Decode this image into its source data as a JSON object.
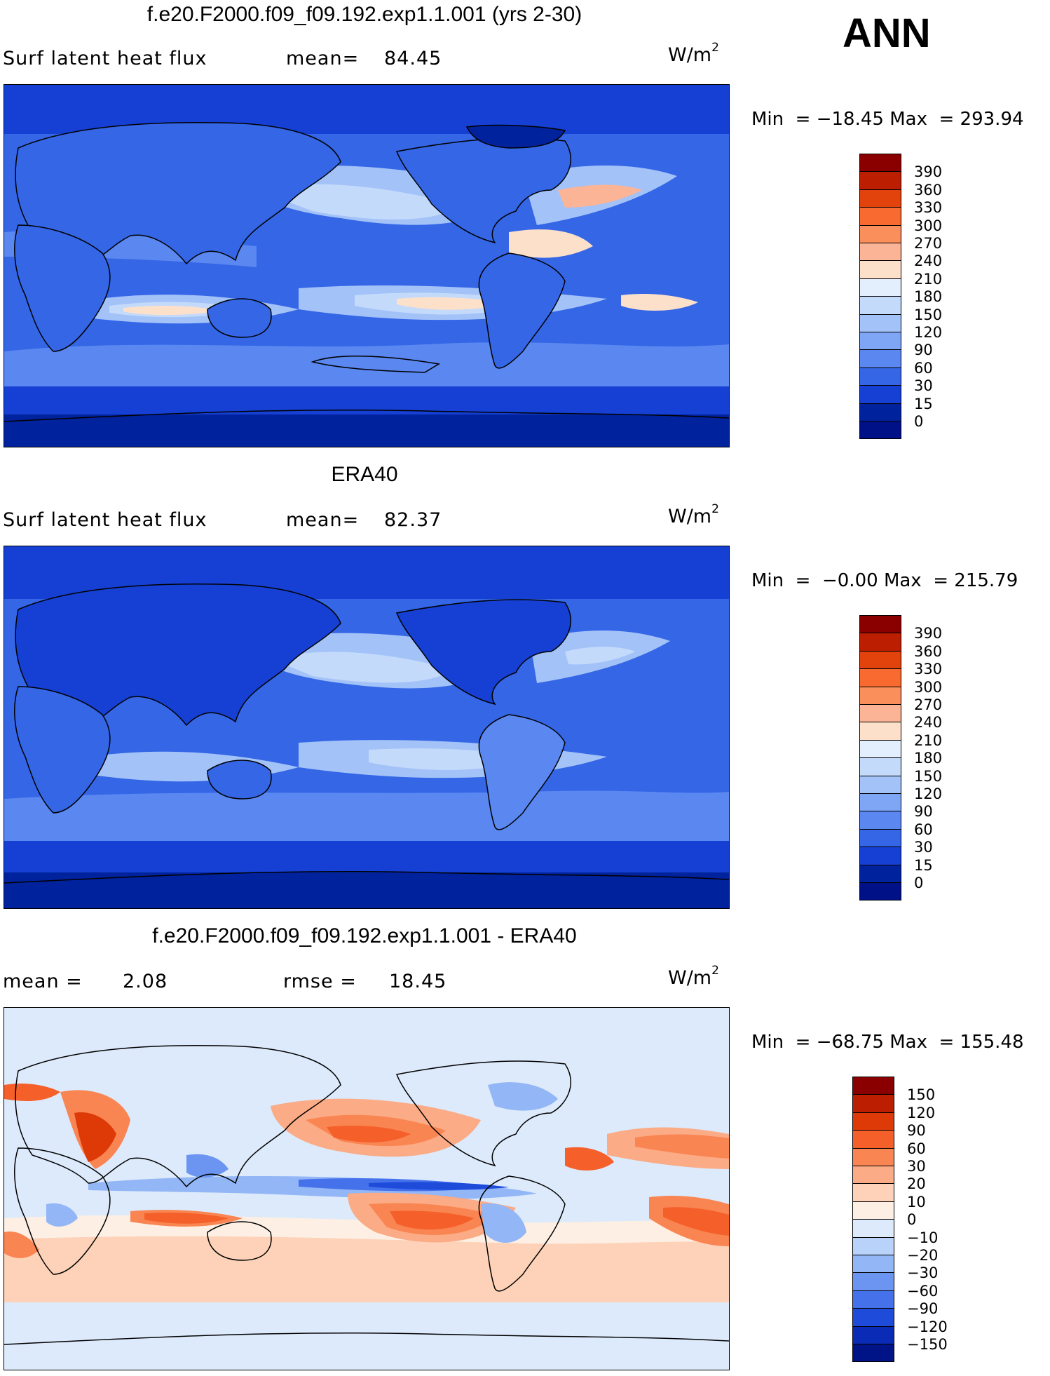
{
  "season": "ANN",
  "panels": [
    {
      "title": "f.e20.F2000.f09_f09.192.exp1.1.001 (yrs 2-30)",
      "left_label": "Surf  latent  heat  flux",
      "stat_label": "mean=",
      "stat_value": "84.45",
      "stat2_label": "",
      "stat2_value": "",
      "units": "W/m",
      "units_sup": "2",
      "min_label": "Min  =",
      "min_value": "−18.45",
      "max_label": "Max  =",
      "max_value": "293.94",
      "colorbar": {
        "labels": [
          "390",
          "360",
          "330",
          "300",
          "270",
          "240",
          "210",
          "180",
          "150",
          "120",
          "90",
          "60",
          "30",
          "15",
          "0"
        ],
        "colors": [
          "#8a0000",
          "#bb1e00",
          "#e2420c",
          "#f86a2f",
          "#fa8f5c",
          "#fbb496",
          "#fde0ca",
          "#e3effd",
          "#c4dafb",
          "#a3c2f8",
          "#7fa6f5",
          "#5a87f0",
          "#3466e6",
          "#1540d3",
          "#00229c",
          "#001188"
        ]
      }
    },
    {
      "title": "ERA40",
      "left_label": "Surf  latent  heat  flux",
      "stat_label": "mean=",
      "stat_value": "82.37",
      "stat2_label": "",
      "stat2_value": "",
      "units": "W/m",
      "units_sup": "2",
      "min_label": "Min  =",
      "min_value": "−0.00",
      "max_label": "Max  =",
      "max_value": "215.79",
      "colorbar": {
        "labels": [
          "390",
          "360",
          "330",
          "300",
          "270",
          "240",
          "210",
          "180",
          "150",
          "120",
          "90",
          "60",
          "30",
          "15",
          "0"
        ],
        "colors": [
          "#8a0000",
          "#bb1e00",
          "#e2420c",
          "#f86a2f",
          "#fa8f5c",
          "#fbb496",
          "#fde0ca",
          "#e3effd",
          "#c4dafb",
          "#a3c2f8",
          "#7fa6f5",
          "#5a87f0",
          "#3466e6",
          "#1540d3",
          "#00229c",
          "#001188"
        ]
      }
    },
    {
      "title": "f.e20.F2000.f09_f09.192.exp1.1.001 - ERA40",
      "left_label": "mean  =",
      "stat_label": "",
      "stat_value": "2.08",
      "stat2_label": "rmse  =",
      "stat2_value": "18.45",
      "units": "W/m",
      "units_sup": "2",
      "min_label": "Min  =",
      "min_value": "−68.75",
      "max_label": "Max  =",
      "max_value": "155.48",
      "colorbar": {
        "labels": [
          "150",
          "120",
          "90",
          "60",
          "30",
          "20",
          "10",
          "0",
          "−10",
          "−20",
          "−30",
          "−60",
          "−90",
          "−120",
          "−150"
        ],
        "colors": [
          "#8a0000",
          "#bb1e00",
          "#dd3a08",
          "#f5602a",
          "#f98552",
          "#fbab85",
          "#fdd2b8",
          "#fdefe3",
          "#dceafb",
          "#b8d2fa",
          "#93b6f6",
          "#6b95f1",
          "#4572ea",
          "#1f4bdb",
          "#0a2bb5",
          "#001488"
        ]
      }
    }
  ]
}
